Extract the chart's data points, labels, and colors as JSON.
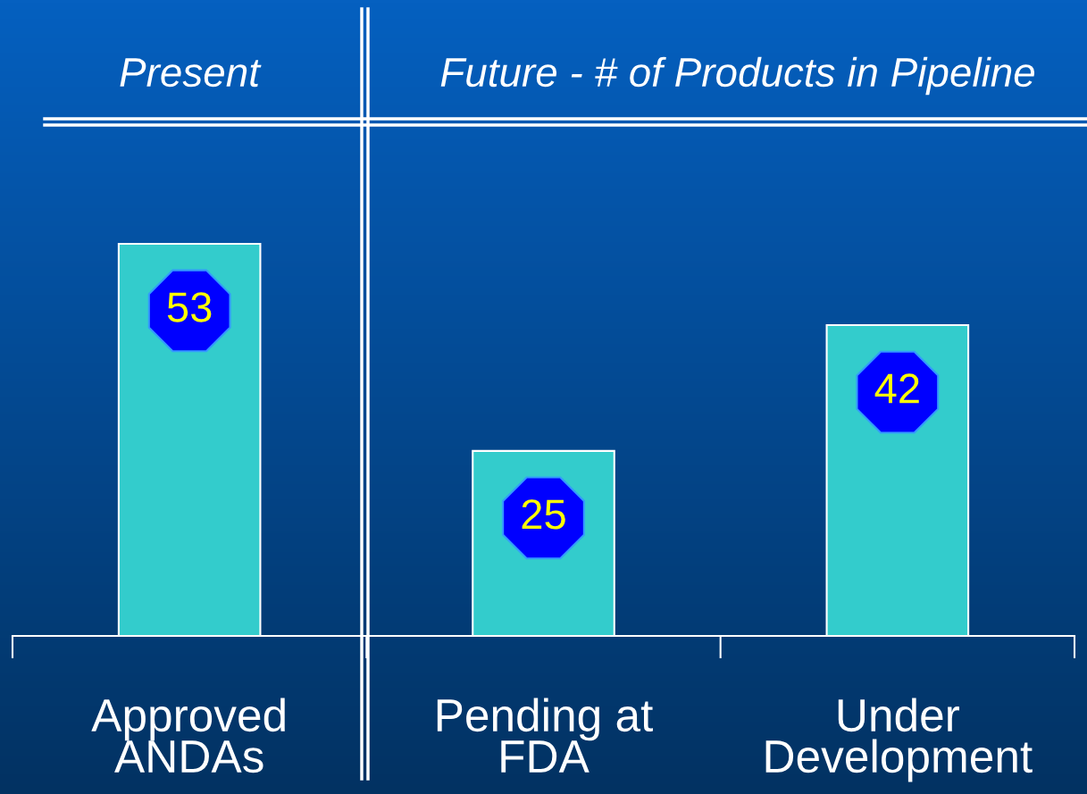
{
  "chart_data": {
    "type": "bar",
    "annotations": [
      "Present",
      "Future - # of Products in Pipeline"
    ],
    "categories": [
      "Approved\nANDAs",
      "Pending at\nFDA",
      "Under\nDevelopment"
    ],
    "values": [
      53,
      25,
      42
    ],
    "color": "#33cccc",
    "data_labels": true,
    "grid": false,
    "legend": false,
    "tick_labels": "x"
  }
}
